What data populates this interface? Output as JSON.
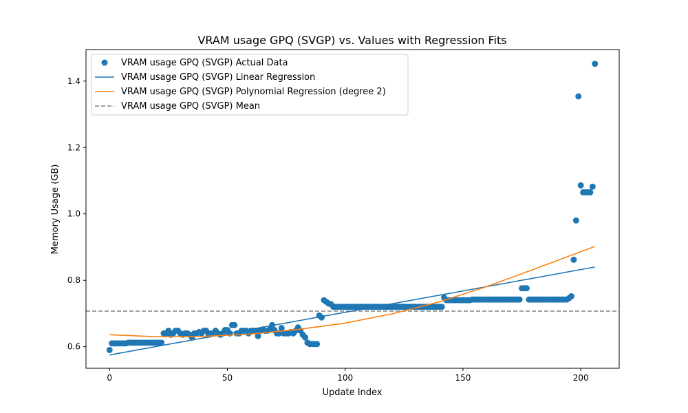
{
  "chart_data": {
    "type": "scatter",
    "title": "VRAM usage GPQ (SVGP) vs. Values with Regression Fits",
    "xlabel": "Update Index",
    "ylabel": "Memory Usage (GB)",
    "xlim": [
      -10,
      216.3
    ],
    "ylim": [
      0.535,
      1.495
    ],
    "xticks": [
      0,
      50,
      100,
      150,
      200
    ],
    "yticks": [
      0.6,
      0.8,
      1.0,
      1.2,
      1.4
    ],
    "xtick_labels": [
      "0",
      "50",
      "100",
      "150",
      "200"
    ],
    "ytick_labels": [
      "0.6",
      "0.8",
      "1.0",
      "1.2",
      "1.4"
    ],
    "grid": false,
    "legend_position": "upper-left",
    "colors": {
      "actual": "#1f77b4",
      "linear": "#1f77b4",
      "poly": "#ff7f0e",
      "mean": "#808080"
    },
    "legend": [
      {
        "key": "actual",
        "label": "VRAM usage GPQ (SVGP) Actual Data",
        "kind": "marker"
      },
      {
        "key": "linear",
        "label": "VRAM usage GPQ (SVGP) Linear Regression",
        "kind": "line"
      },
      {
        "key": "poly",
        "label": "VRAM usage GPQ (SVGP) Polynomial Regression (degree 2)",
        "kind": "line"
      },
      {
        "key": "mean",
        "label": "VRAM usage GPQ (SVGP) Mean",
        "kind": "dashed"
      }
    ],
    "series": [
      {
        "name": "VRAM usage GPQ (SVGP) Actual Data",
        "kind": "scatter",
        "points": [
          [
            0,
            0.59
          ],
          [
            1,
            0.61
          ],
          [
            2,
            0.61
          ],
          [
            3,
            0.61
          ],
          [
            4,
            0.61
          ],
          [
            5,
            0.61
          ],
          [
            6,
            0.61
          ],
          [
            7,
            0.61
          ],
          [
            8,
            0.612
          ],
          [
            9,
            0.612
          ],
          [
            10,
            0.612
          ],
          [
            11,
            0.612
          ],
          [
            12,
            0.612
          ],
          [
            13,
            0.612
          ],
          [
            14,
            0.612
          ],
          [
            15,
            0.612
          ],
          [
            16,
            0.612
          ],
          [
            17,
            0.612
          ],
          [
            18,
            0.612
          ],
          [
            19,
            0.612
          ],
          [
            20,
            0.612
          ],
          [
            21,
            0.612
          ],
          [
            22,
            0.612
          ],
          [
            23,
            0.64
          ],
          [
            24,
            0.64
          ],
          [
            25,
            0.648
          ],
          [
            26,
            0.636
          ],
          [
            27,
            0.64
          ],
          [
            28,
            0.648
          ],
          [
            29,
            0.648
          ],
          [
            30,
            0.64
          ],
          [
            31,
            0.636
          ],
          [
            32,
            0.64
          ],
          [
            33,
            0.64
          ],
          [
            34,
            0.636
          ],
          [
            35,
            0.628
          ],
          [
            36,
            0.64
          ],
          [
            37,
            0.64
          ],
          [
            38,
            0.644
          ],
          [
            39,
            0.64
          ],
          [
            40,
            0.648
          ],
          [
            41,
            0.648
          ],
          [
            42,
            0.636
          ],
          [
            43,
            0.64
          ],
          [
            44,
            0.64
          ],
          [
            45,
            0.648
          ],
          [
            46,
            0.64
          ],
          [
            47,
            0.636
          ],
          [
            48,
            0.64
          ],
          [
            49,
            0.65
          ],
          [
            50,
            0.65
          ],
          [
            51,
            0.64
          ],
          [
            52,
            0.665
          ],
          [
            53,
            0.665
          ],
          [
            54,
            0.64
          ],
          [
            55,
            0.64
          ],
          [
            56,
            0.648
          ],
          [
            57,
            0.648
          ],
          [
            58,
            0.648
          ],
          [
            59,
            0.64
          ],
          [
            60,
            0.648
          ],
          [
            61,
            0.648
          ],
          [
            62,
            0.648
          ],
          [
            63,
            0.632
          ],
          [
            64,
            0.648
          ],
          [
            65,
            0.652
          ],
          [
            66,
            0.648
          ],
          [
            67,
            0.648
          ],
          [
            68,
            0.652
          ],
          [
            69,
            0.665
          ],
          [
            70,
            0.65
          ],
          [
            71,
            0.64
          ],
          [
            72,
            0.64
          ],
          [
            73,
            0.656
          ],
          [
            74,
            0.64
          ],
          [
            75,
            0.64
          ],
          [
            76,
            0.64
          ],
          [
            77,
            0.644
          ],
          [
            78,
            0.64
          ],
          [
            79,
            0.648
          ],
          [
            80,
            0.658
          ],
          [
            81,
            0.648
          ],
          [
            82,
            0.636
          ],
          [
            83,
            0.628
          ],
          [
            84,
            0.612
          ],
          [
            85,
            0.608
          ],
          [
            86,
            0.608
          ],
          [
            87,
            0.608
          ],
          [
            88,
            0.608
          ],
          [
            89,
            0.694
          ],
          [
            90,
            0.688
          ],
          [
            91,
            0.74
          ],
          [
            92,
            0.735
          ],
          [
            93,
            0.73
          ],
          [
            94,
            0.728
          ],
          [
            95,
            0.72
          ],
          [
            96,
            0.72
          ],
          [
            97,
            0.72
          ],
          [
            98,
            0.72
          ],
          [
            99,
            0.72
          ],
          [
            100,
            0.72
          ],
          [
            101,
            0.72
          ],
          [
            102,
            0.72
          ],
          [
            103,
            0.72
          ],
          [
            104,
            0.72
          ],
          [
            105,
            0.72
          ],
          [
            106,
            0.72
          ],
          [
            107,
            0.72
          ],
          [
            108,
            0.72
          ],
          [
            109,
            0.72
          ],
          [
            110,
            0.72
          ],
          [
            111,
            0.72
          ],
          [
            112,
            0.72
          ],
          [
            113,
            0.72
          ],
          [
            114,
            0.72
          ],
          [
            115,
            0.72
          ],
          [
            116,
            0.72
          ],
          [
            117,
            0.72
          ],
          [
            118,
            0.72
          ],
          [
            119,
            0.72
          ],
          [
            120,
            0.72
          ],
          [
            121,
            0.72
          ],
          [
            122,
            0.72
          ],
          [
            123,
            0.72
          ],
          [
            124,
            0.72
          ],
          [
            125,
            0.72
          ],
          [
            126,
            0.72
          ],
          [
            127,
            0.72
          ],
          [
            128,
            0.72
          ],
          [
            129,
            0.72
          ],
          [
            130,
            0.72
          ],
          [
            131,
            0.72
          ],
          [
            132,
            0.72
          ],
          [
            133,
            0.72
          ],
          [
            134,
            0.72
          ],
          [
            135,
            0.72
          ],
          [
            136,
            0.72
          ],
          [
            137,
            0.72
          ],
          [
            138,
            0.72
          ],
          [
            139,
            0.72
          ],
          [
            140,
            0.72
          ],
          [
            141,
            0.72
          ],
          [
            142,
            0.748
          ],
          [
            143,
            0.74
          ],
          [
            144,
            0.74
          ],
          [
            145,
            0.74
          ],
          [
            146,
            0.74
          ],
          [
            147,
            0.74
          ],
          [
            148,
            0.74
          ],
          [
            149,
            0.74
          ],
          [
            150,
            0.74
          ],
          [
            151,
            0.74
          ],
          [
            152,
            0.74
          ],
          [
            153,
            0.74
          ],
          [
            154,
            0.742
          ],
          [
            155,
            0.742
          ],
          [
            156,
            0.742
          ],
          [
            157,
            0.742
          ],
          [
            158,
            0.742
          ],
          [
            159,
            0.742
          ],
          [
            160,
            0.742
          ],
          [
            161,
            0.742
          ],
          [
            162,
            0.742
          ],
          [
            163,
            0.742
          ],
          [
            164,
            0.742
          ],
          [
            165,
            0.742
          ],
          [
            166,
            0.742
          ],
          [
            167,
            0.742
          ],
          [
            168,
            0.742
          ],
          [
            169,
            0.742
          ],
          [
            170,
            0.742
          ],
          [
            171,
            0.742
          ],
          [
            172,
            0.742
          ],
          [
            173,
            0.742
          ],
          [
            174,
            0.742
          ],
          [
            175,
            0.776
          ],
          [
            176,
            0.776
          ],
          [
            177,
            0.776
          ],
          [
            178,
            0.742
          ],
          [
            179,
            0.742
          ],
          [
            180,
            0.742
          ],
          [
            181,
            0.742
          ],
          [
            182,
            0.742
          ],
          [
            183,
            0.742
          ],
          [
            184,
            0.742
          ],
          [
            185,
            0.742
          ],
          [
            186,
            0.742
          ],
          [
            187,
            0.742
          ],
          [
            188,
            0.742
          ],
          [
            189,
            0.742
          ],
          [
            190,
            0.742
          ],
          [
            191,
            0.742
          ],
          [
            192,
            0.742
          ],
          [
            193,
            0.742
          ],
          [
            194,
            0.742
          ],
          [
            195,
            0.746
          ],
          [
            196,
            0.752
          ],
          [
            197,
            0.862
          ],
          [
            198,
            0.98
          ],
          [
            199,
            1.354
          ],
          [
            200,
            1.086
          ],
          [
            201,
            1.065
          ],
          [
            202,
            1.065
          ],
          [
            203,
            1.065
          ],
          [
            204,
            1.065
          ],
          [
            205,
            1.082
          ],
          [
            206,
            1.452
          ]
        ]
      },
      {
        "name": "VRAM usage GPQ (SVGP) Linear Regression",
        "kind": "line",
        "points": [
          [
            0,
            0.575
          ],
          [
            206,
            0.84
          ]
        ]
      },
      {
        "name": "VRAM usage GPQ (SVGP) Polynomial Regression (degree 2)",
        "kind": "line",
        "points": [
          [
            0,
            0.636
          ],
          [
            20,
            0.63
          ],
          [
            40,
            0.631
          ],
          [
            60,
            0.638
          ],
          [
            80,
            0.652
          ],
          [
            100,
            0.671
          ],
          [
            120,
            0.699
          ],
          [
            140,
            0.735
          ],
          [
            160,
            0.781
          ],
          [
            180,
            0.833
          ],
          [
            206,
            0.902
          ]
        ]
      },
      {
        "name": "VRAM usage GPQ (SVGP) Mean",
        "kind": "hline",
        "value": 0.707
      }
    ]
  }
}
